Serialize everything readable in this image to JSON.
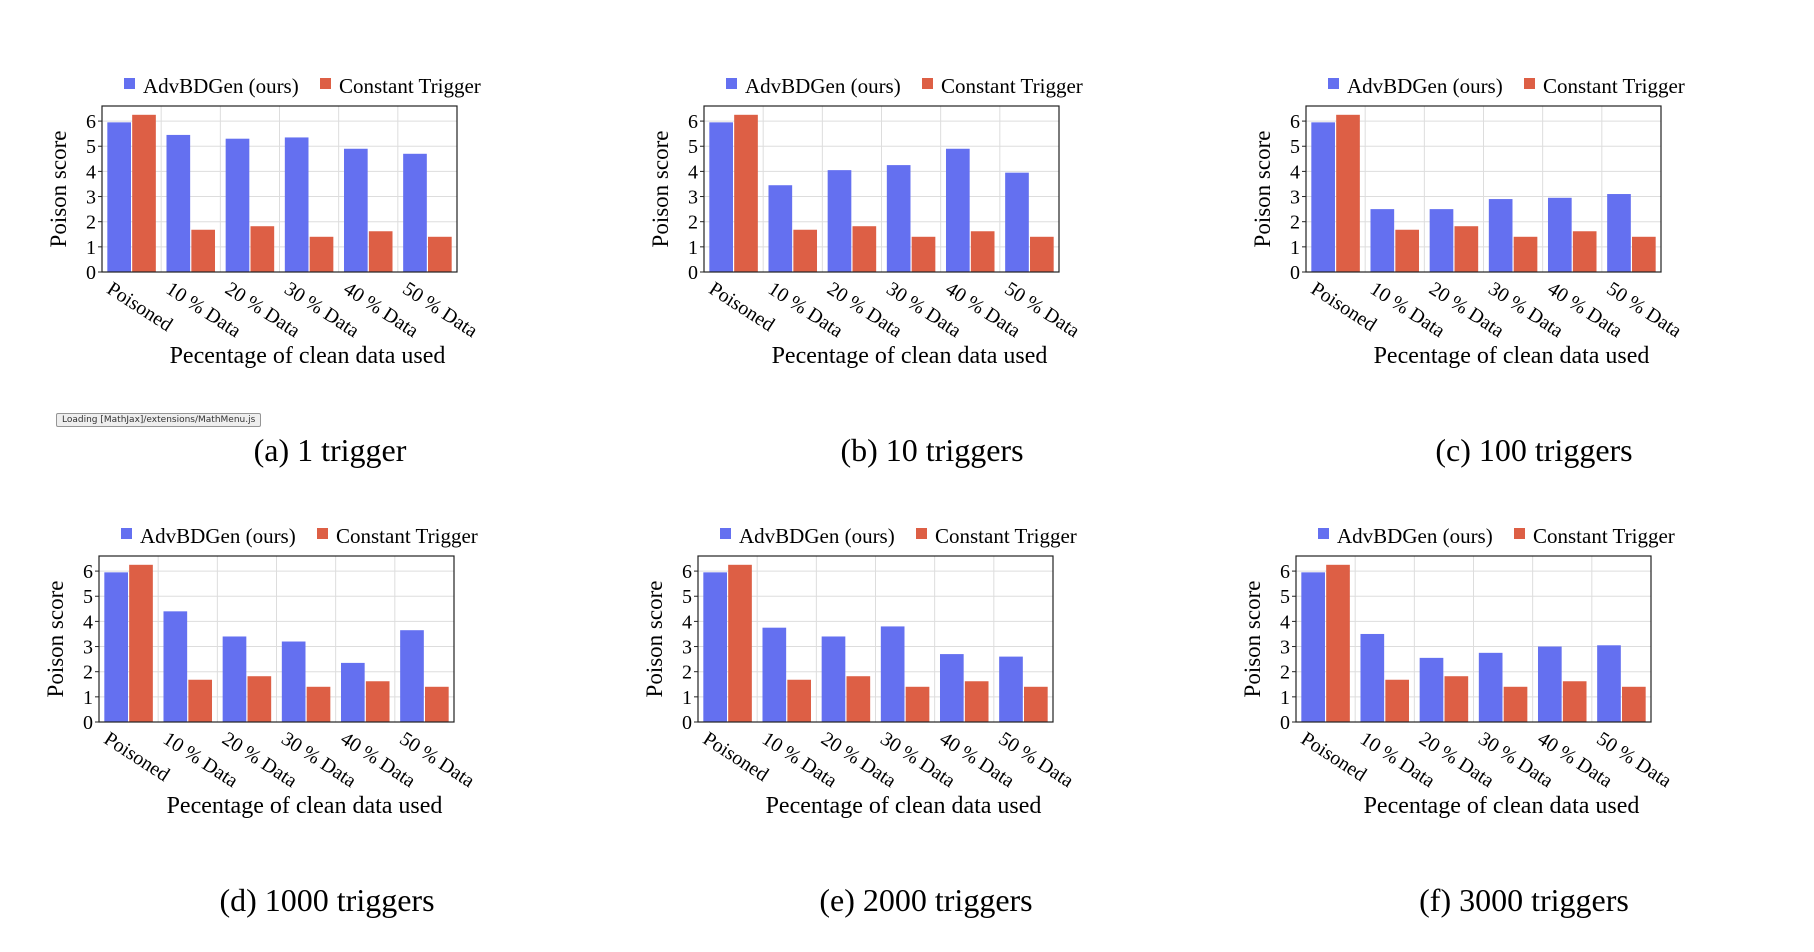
{
  "colors": {
    "advbdgen": "#6470f0",
    "constant": "#dd5f45",
    "grid": "#dddddd",
    "axis": "#222222"
  },
  "status": {
    "mathjax_loading": "Loading [MathJax]/extensions/MathMenu.js"
  },
  "chart_data": [
    {
      "type": "bar",
      "caption": "(a) 1 trigger",
      "xlabel": "Pecentage of clean data used",
      "ylabel": "Poison score",
      "ylim": [
        0,
        6.6
      ],
      "yticks": [
        0,
        1,
        2,
        3,
        4,
        5,
        6
      ],
      "grid": true,
      "legend_position": "top",
      "categories": [
        "Poisoned",
        "10 % Data",
        "20 % Data",
        "30 % Data",
        "40 % Data",
        "50 % Data"
      ],
      "series": [
        {
          "name": "AdvBDGen (ours)",
          "values": [
            5.95,
            5.45,
            5.3,
            5.35,
            4.9,
            4.7
          ]
        },
        {
          "name": "Constant Trigger",
          "values": [
            6.25,
            1.68,
            1.82,
            1.4,
            1.62,
            1.4
          ]
        }
      ]
    },
    {
      "type": "bar",
      "caption": "(b) 10 triggers",
      "xlabel": "Pecentage of clean data used",
      "ylabel": "Poison score",
      "ylim": [
        0,
        6.6
      ],
      "yticks": [
        0,
        1,
        2,
        3,
        4,
        5,
        6
      ],
      "grid": true,
      "legend_position": "top",
      "categories": [
        "Poisoned",
        "10 % Data",
        "20 % Data",
        "30 % Data",
        "40 % Data",
        "50 % Data"
      ],
      "series": [
        {
          "name": "AdvBDGen (ours)",
          "values": [
            5.95,
            3.45,
            4.05,
            4.25,
            4.9,
            3.95
          ]
        },
        {
          "name": "Constant Trigger",
          "values": [
            6.25,
            1.68,
            1.82,
            1.4,
            1.62,
            1.4
          ]
        }
      ]
    },
    {
      "type": "bar",
      "caption": "(c) 100 triggers",
      "xlabel": "Pecentage of clean data used",
      "ylabel": "Poison score",
      "ylim": [
        0,
        6.6
      ],
      "yticks": [
        0,
        1,
        2,
        3,
        4,
        5,
        6
      ],
      "grid": true,
      "legend_position": "top",
      "categories": [
        "Poisoned",
        "10 % Data",
        "20 % Data",
        "30 % Data",
        "40 % Data",
        "50 % Data"
      ],
      "series": [
        {
          "name": "AdvBDGen (ours)",
          "values": [
            5.95,
            2.5,
            2.5,
            2.9,
            2.95,
            3.1
          ]
        },
        {
          "name": "Constant Trigger",
          "values": [
            6.25,
            1.68,
            1.82,
            1.4,
            1.62,
            1.4
          ]
        }
      ]
    },
    {
      "type": "bar",
      "caption": "(d) 1000 triggers",
      "xlabel": "Pecentage of clean data used",
      "ylabel": "Poison score",
      "ylim": [
        0,
        6.6
      ],
      "yticks": [
        0,
        1,
        2,
        3,
        4,
        5,
        6
      ],
      "grid": true,
      "legend_position": "top",
      "categories": [
        "Poisoned",
        "10 % Data",
        "20 % Data",
        "30 % Data",
        "40 % Data",
        "50 % Data"
      ],
      "series": [
        {
          "name": "AdvBDGen (ours)",
          "values": [
            5.95,
            4.4,
            3.4,
            3.2,
            2.35,
            3.65
          ]
        },
        {
          "name": "Constant Trigger",
          "values": [
            6.25,
            1.68,
            1.82,
            1.4,
            1.62,
            1.4
          ]
        }
      ]
    },
    {
      "type": "bar",
      "caption": "(e) 2000 triggers",
      "xlabel": "Pecentage of clean data used",
      "ylabel": "Poison score",
      "ylim": [
        0,
        6.6
      ],
      "yticks": [
        0,
        1,
        2,
        3,
        4,
        5,
        6
      ],
      "grid": true,
      "legend_position": "top",
      "categories": [
        "Poisoned",
        "10 % Data",
        "20 % Data",
        "30 % Data",
        "40 % Data",
        "50 % Data"
      ],
      "series": [
        {
          "name": "AdvBDGen (ours)",
          "values": [
            5.95,
            3.75,
            3.4,
            3.8,
            2.7,
            2.6
          ]
        },
        {
          "name": "Constant Trigger",
          "values": [
            6.25,
            1.68,
            1.82,
            1.4,
            1.62,
            1.4
          ]
        }
      ]
    },
    {
      "type": "bar",
      "caption": "(f) 3000 triggers",
      "xlabel": "Pecentage of clean data used",
      "ylabel": "Poison score",
      "ylim": [
        0,
        6.6
      ],
      "yticks": [
        0,
        1,
        2,
        3,
        4,
        5,
        6
      ],
      "grid": true,
      "legend_position": "top",
      "categories": [
        "Poisoned",
        "10 % Data",
        "20 % Data",
        "30 % Data",
        "40 % Data",
        "50 % Data"
      ],
      "series": [
        {
          "name": "AdvBDGen (ours)",
          "values": [
            5.95,
            3.5,
            2.55,
            2.75,
            3.0,
            3.05
          ]
        },
        {
          "name": "Constant Trigger",
          "values": [
            6.25,
            1.68,
            1.82,
            1.4,
            1.62,
            1.4
          ]
        }
      ]
    }
  ]
}
